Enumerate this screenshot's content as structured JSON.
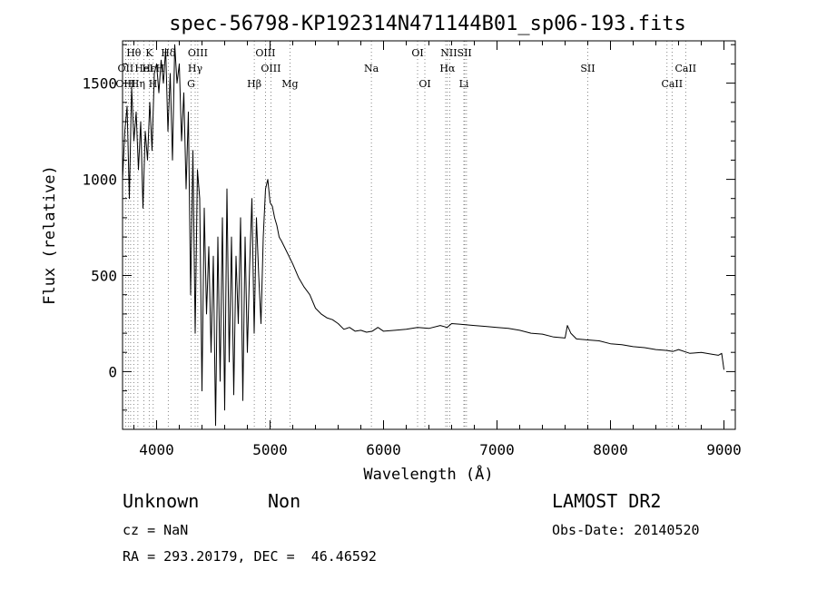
{
  "chart_data": {
    "type": "line",
    "title": "spec-56798-KP192314N471144B01_sp06-193.fits",
    "xlabel": "Wavelength (Å)",
    "ylabel": "Flux (relative)",
    "xlim": [
      3700,
      9100
    ],
    "ylim": [
      -300,
      1720
    ],
    "x_ticks": [
      4000,
      5000,
      6000,
      7000,
      8000,
      9000
    ],
    "y_ticks": [
      0,
      500,
      1000,
      1500
    ],
    "grid": false,
    "series": [
      {
        "x": [
          3700,
          3720,
          3740,
          3760,
          3780,
          3800,
          3820,
          3840,
          3860,
          3880,
          3900,
          3920,
          3940,
          3960,
          3980,
          4000,
          4020,
          4040,
          4060,
          4080,
          4100,
          4120,
          4140,
          4160,
          4180,
          4200,
          4220,
          4240,
          4260,
          4280,
          4300,
          4320,
          4340,
          4360,
          4380,
          4400,
          4420,
          4440,
          4460,
          4480,
          4500,
          4520,
          4540,
          4560,
          4580,
          4600,
          4620,
          4640,
          4660,
          4680,
          4700,
          4720,
          4740,
          4760,
          4780,
          4800,
          4820,
          4840,
          4860,
          4880,
          4900,
          4920,
          4940,
          4960,
          4980,
          5000,
          5020,
          5040,
          5060,
          5080,
          5100,
          5150,
          5200,
          5250,
          5300,
          5350,
          5400,
          5450,
          5500,
          5550,
          5600,
          5650,
          5700,
          5750,
          5800,
          5850,
          5900,
          5950,
          6000,
          6100,
          6200,
          6300,
          6400,
          6500,
          6560,
          6600,
          6700,
          6800,
          6900,
          7000,
          7100,
          7200,
          7300,
          7400,
          7500,
          7600,
          7620,
          7650,
          7700,
          7800,
          7900,
          8000,
          8100,
          8200,
          8300,
          8400,
          8500,
          8550,
          8600,
          8700,
          8800,
          8900,
          8950,
          8980,
          9000
        ],
        "values": [
          1000,
          1250,
          1380,
          900,
          1480,
          1200,
          1350,
          1050,
          1300,
          850,
          1250,
          1100,
          1400,
          1150,
          1550,
          1600,
          1450,
          1620,
          1500,
          1680,
          1250,
          1550,
          1100,
          1700,
          1500,
          1600,
          1200,
          1450,
          950,
          1350,
          400,
          1150,
          200,
          1050,
          900,
          -100,
          850,
          300,
          650,
          100,
          600,
          -280,
          700,
          -50,
          800,
          -200,
          950,
          50,
          700,
          -120,
          600,
          250,
          800,
          -150,
          700,
          100,
          550,
          900,
          200,
          800,
          500,
          250,
          700,
          950,
          1000,
          880,
          860,
          800,
          760,
          700,
          680,
          620,
          560,
          490,
          440,
          400,
          330,
          300,
          280,
          270,
          250,
          220,
          230,
          210,
          215,
          205,
          210,
          230,
          210,
          215,
          220,
          230,
          225,
          240,
          230,
          250,
          245,
          240,
          235,
          230,
          225,
          215,
          200,
          195,
          180,
          175,
          240,
          200,
          170,
          165,
          160,
          145,
          140,
          130,
          125,
          115,
          110,
          105,
          115,
          95,
          100,
          90,
          85,
          95,
          10
        ]
      }
    ],
    "spectral_lines": [
      {
        "label": "Hθ",
        "wl": 3798,
        "row": 1
      },
      {
        "label": "K",
        "wl": 3934,
        "row": 1
      },
      {
        "label": "Hδ",
        "wl": 4102,
        "row": 1
      },
      {
        "label": "OIII",
        "wl": 4363,
        "row": 1
      },
      {
        "label": "OIII",
        "wl": 4959,
        "row": 1
      },
      {
        "label": "OI",
        "wl": 6300,
        "row": 1
      },
      {
        "label": "NIISII",
        "wl": 6640,
        "row": 1
      },
      {
        "label": "OII",
        "wl": 3727,
        "row": 2
      },
      {
        "label": "HeI",
        "wl": 3889,
        "row": 2
      },
      {
        "label": "HεH",
        "wl": 3970,
        "row": 2
      },
      {
        "label": "Hγ",
        "wl": 4340,
        "row": 2
      },
      {
        "label": "OIII",
        "wl": 5007,
        "row": 2
      },
      {
        "label": "Na",
        "wl": 5893,
        "row": 2
      },
      {
        "label": "Hα",
        "wl": 6563,
        "row": 2
      },
      {
        "label": "SII",
        "wl": 7800,
        "row": 2
      },
      {
        "label": "CaII",
        "wl": 8662,
        "row": 2
      },
      {
        "label": "OIII",
        "wl": 3727,
        "row": 3
      },
      {
        "label": "Hη",
        "wl": 3835,
        "row": 3
      },
      {
        "label": "H",
        "wl": 3968,
        "row": 3
      },
      {
        "label": "G",
        "wl": 4304,
        "row": 3
      },
      {
        "label": "Hβ",
        "wl": 4861,
        "row": 3
      },
      {
        "label": "Mg",
        "wl": 5175,
        "row": 3
      },
      {
        "label": "OI",
        "wl": 6364,
        "row": 3
      },
      {
        "label": "Li",
        "wl": 6708,
        "row": 3
      },
      {
        "label": "CaII",
        "wl": 8542,
        "row": 3
      }
    ],
    "line_marker_wavelengths": [
      3727,
      3750,
      3771,
      3798,
      3835,
      3889,
      3934,
      3970,
      4102,
      4304,
      4340,
      4363,
      4861,
      4959,
      5007,
      5175,
      5893,
      6300,
      6364,
      6548,
      6563,
      6583,
      6708,
      6716,
      6731,
      7800,
      8498,
      8542,
      8662
    ]
  },
  "info": {
    "class": "Unknown",
    "subclass": "Non",
    "survey": "LAMOST DR2",
    "cz": "cz = NaN",
    "obs_date": "Obs-Date: 20140520",
    "radec": "RA = 293.20179, DEC =  46.46592"
  }
}
